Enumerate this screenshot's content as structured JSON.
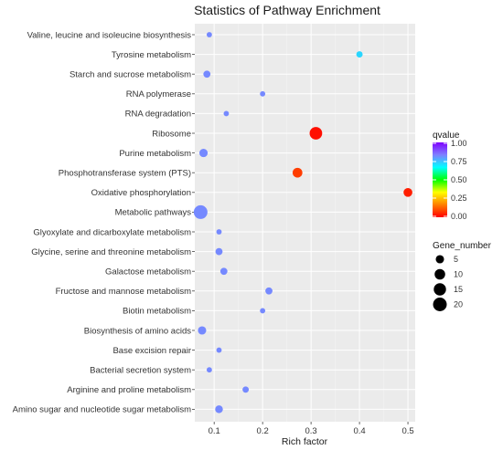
{
  "chart_data": {
    "type": "scatter",
    "title": "Statistics of Pathway Enrichment",
    "xlabel": "Rich factor",
    "ylabel": "",
    "xlim": [
      0.06,
      0.515
    ],
    "xticks": [
      {
        "value": 0.1,
        "label": "0.1"
      },
      {
        "value": 0.2,
        "label": "0.2"
      },
      {
        "value": 0.3,
        "label": "0.3"
      },
      {
        "value": 0.4,
        "label": "0.4"
      },
      {
        "value": 0.5,
        "label": "0.5"
      }
    ],
    "grid": true,
    "background": "#ebebeb",
    "categories": [
      "Valine, leucine and isoleucine biosynthesis",
      "Tyrosine metabolism",
      "Starch and sucrose metabolism",
      "RNA polymerase",
      "RNA degradation",
      "Ribosome",
      "Purine metabolism",
      "Phosphotransferase system (PTS)",
      "Oxidative phosphorylation",
      "Metabolic pathways",
      "Glyoxylate and dicarboxylate metabolism",
      "Glycine, serine and threonine metabolism",
      "Galactose metabolism",
      "Fructose and mannose metabolism",
      "Biotin metabolism",
      "Biosynthesis of amino acids",
      "Base excision repair",
      "Bacterial secretion system",
      "Arginine and proline metabolism",
      "Amino sugar and nucleotide sugar metabolism"
    ],
    "points": [
      {
        "pathway": "Valine, leucine and isoleucine biosynthesis",
        "rich_factor": 0.09,
        "gene_number": 1,
        "qvalue": 0.82
      },
      {
        "pathway": "Tyrosine metabolism",
        "rich_factor": 0.4,
        "gene_number": 2,
        "qvalue": 0.72
      },
      {
        "pathway": "Starch and sucrose metabolism",
        "rich_factor": 0.085,
        "gene_number": 3,
        "qvalue": 0.82
      },
      {
        "pathway": "RNA polymerase",
        "rich_factor": 0.2,
        "gene_number": 1,
        "qvalue": 0.82
      },
      {
        "pathway": "RNA degradation",
        "rich_factor": 0.125,
        "gene_number": 1,
        "qvalue": 0.82
      },
      {
        "pathway": "Ribosome",
        "rich_factor": 0.31,
        "gene_number": 16,
        "qvalue": 0.02
      },
      {
        "pathway": "Purine metabolism",
        "rich_factor": 0.078,
        "gene_number": 5,
        "qvalue": 0.82
      },
      {
        "pathway": "Phosphotransferase system (PTS)",
        "rich_factor": 0.272,
        "gene_number": 8,
        "qvalue": 0.08
      },
      {
        "pathway": "Oxidative phosphorylation",
        "rich_factor": 0.5,
        "gene_number": 6,
        "qvalue": 0.04
      },
      {
        "pathway": "Metabolic pathways",
        "rich_factor": 0.072,
        "gene_number": 20,
        "qvalue": 0.82
      },
      {
        "pathway": "Glyoxylate and dicarboxylate metabolism",
        "rich_factor": 0.11,
        "gene_number": 1,
        "qvalue": 0.82
      },
      {
        "pathway": "Glycine, serine and threonine metabolism",
        "rich_factor": 0.11,
        "gene_number": 3,
        "qvalue": 0.82
      },
      {
        "pathway": "Galactose metabolism",
        "rich_factor": 0.12,
        "gene_number": 3,
        "qvalue": 0.82
      },
      {
        "pathway": "Fructose and mannose metabolism",
        "rich_factor": 0.213,
        "gene_number": 3,
        "qvalue": 0.82
      },
      {
        "pathway": "Biotin metabolism",
        "rich_factor": 0.2,
        "gene_number": 1,
        "qvalue": 0.82
      },
      {
        "pathway": "Biosynthesis of amino acids",
        "rich_factor": 0.075,
        "gene_number": 5,
        "qvalue": 0.82
      },
      {
        "pathway": "Base excision repair",
        "rich_factor": 0.11,
        "gene_number": 1,
        "qvalue": 0.82
      },
      {
        "pathway": "Bacterial secretion system",
        "rich_factor": 0.09,
        "gene_number": 1,
        "qvalue": 0.82
      },
      {
        "pathway": "Arginine and proline metabolism",
        "rich_factor": 0.165,
        "gene_number": 2,
        "qvalue": 0.82
      },
      {
        "pathway": "Amino sugar and nucleotide sugar metabolism",
        "rich_factor": 0.11,
        "gene_number": 4,
        "qvalue": 0.82
      }
    ],
    "color_legend": {
      "title": "qvalue",
      "ticks": [
        {
          "value": 1.0,
          "label": "1.00"
        },
        {
          "value": 0.75,
          "label": "0.75"
        },
        {
          "value": 0.5,
          "label": "0.50"
        },
        {
          "value": 0.25,
          "label": "0.25"
        },
        {
          "value": 0.0,
          "label": "0.00"
        }
      ],
      "gradient": [
        "#ff0000",
        "#ff7f00",
        "#ffff00",
        "#00ff00",
        "#00ffff",
        "#7f7fff",
        "#7f00ff"
      ],
      "placement": "right"
    },
    "size_legend": {
      "title": "Gene_number",
      "items": [
        {
          "value": 5,
          "label": "5"
        },
        {
          "value": 10,
          "label": "10"
        },
        {
          "value": 15,
          "label": "15"
        },
        {
          "value": 20,
          "label": "20"
        }
      ],
      "placement": "right"
    }
  }
}
